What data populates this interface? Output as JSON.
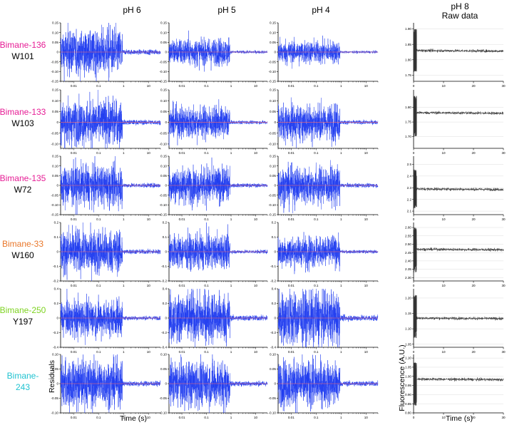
{
  "columns": [
    {
      "title_lines": [
        "pH 6"
      ],
      "kind": "residual"
    },
    {
      "title_lines": [
        "pH 5"
      ],
      "kind": "residual"
    },
    {
      "title_lines": [
        "pH 4"
      ],
      "kind": "residual"
    },
    {
      "title_lines": [
        "pH 8",
        "Raw data"
      ],
      "kind": "raw"
    }
  ],
  "rows": [
    {
      "label_lines": [
        "Bimane-136",
        "W101"
      ],
      "label_colors": [
        "#e61d95",
        "#000000"
      ]
    },
    {
      "label_lines": [
        "Bimane-133",
        "W103"
      ],
      "label_colors": [
        "#e61d95",
        "#000000"
      ]
    },
    {
      "label_lines": [
        "Bimane-135",
        "W72"
      ],
      "label_colors": [
        "#e61d95",
        "#000000"
      ]
    },
    {
      "label_lines": [
        "Bimane-33",
        "W160"
      ],
      "label_colors": [
        "#e9772a",
        "#000000"
      ]
    },
    {
      "label_lines": [
        "Bimane-250",
        "Y197"
      ],
      "label_colors": [
        "#7ed321",
        "#000000"
      ]
    },
    {
      "label_lines": [
        "Bimane-",
        "243"
      ],
      "label_colors": [
        "#21c3d1",
        "#21c3d1"
      ]
    }
  ],
  "axis_labels": {
    "residual_y": "Residuals",
    "residual_x": "Time (s)",
    "raw_y": "Fluorescence (A.U.)",
    "raw_x": "Time (s)"
  },
  "colors": {
    "residual_trace": "#1f3cf0",
    "zero_line": "#ff6b6b",
    "raw_trace": "#333333",
    "grid": "#dddddd"
  },
  "chart_data": {
    "type": "line",
    "residual_x_scale": "log",
    "residual_xlim": [
      0.003,
      30
    ],
    "residual_xticks": [
      "0.01",
      "0.1",
      "1",
      "10"
    ],
    "raw_xlim": [
      0,
      30
    ],
    "raw_xticks": [
      "0",
      "10",
      "20",
      "30"
    ],
    "residual_yticks": [
      [
        "0.15",
        "0.10",
        "0.05",
        "0",
        "-0.05",
        "-0.10",
        "-0.15"
      ],
      [
        "0.15",
        "0.10",
        "0.05",
        "0",
        "-0.05",
        "-0.10"
      ],
      [
        "0.15",
        "0.10",
        "0.05",
        "0",
        "-0.05",
        "-0.10",
        "-0.15"
      ],
      [
        "0.2",
        "0.1",
        "0",
        "-0.1",
        "-0.2"
      ],
      [
        "0.4",
        "0.2",
        "0",
        "-0.2",
        "-0.4"
      ],
      [
        "0.10",
        "0.05",
        "0",
        "-0.05",
        "-0.10",
        "-0.15"
      ]
    ],
    "residual_ylims": [
      [
        -0.15,
        0.15
      ],
      [
        -0.12,
        0.15
      ],
      [
        -0.15,
        0.15
      ],
      [
        -0.2,
        0.2
      ],
      [
        -0.4,
        0.4
      ],
      [
        -0.1,
        0.1
      ]
    ],
    "residual_amplitude": [
      [
        0.1,
        0.06,
        0.05
      ],
      [
        0.09,
        0.065,
        0.075
      ],
      [
        0.09,
        0.08,
        0.085
      ],
      [
        0.13,
        0.1,
        0.09
      ],
      [
        0.22,
        0.3,
        0.32
      ],
      [
        0.07,
        0.07,
        0.07
      ]
    ],
    "raw_yticks": [
      [
        "1.90",
        "1.85",
        "1.80",
        "1.75"
      ],
      [
        "1.80",
        "1.75",
        "1.70"
      ],
      [
        "2.5",
        "2.4",
        "2.3",
        "2.2",
        "2.1"
      ],
      [
        "2.60",
        "2.55",
        "2.50",
        "2.45",
        "2.40",
        "2.35",
        "2.30"
      ],
      [
        "1.20",
        "1.15",
        "1.10",
        "1.05"
      ],
      [
        "1.10",
        "1.05",
        "1.00",
        "0.95",
        "0.90",
        "0.85",
        "0.80"
      ]
    ],
    "raw_ylims": [
      [
        1.73,
        1.92
      ],
      [
        1.66,
        1.86
      ],
      [
        2.07,
        2.57
      ],
      [
        2.28,
        2.63
      ],
      [
        1.04,
        1.23
      ],
      [
        0.8,
        1.12
      ]
    ],
    "raw_plateau": [
      1.83,
      1.782,
      2.29,
      2.47,
      1.135,
      0.985
    ],
    "raw_spike_range": [
      [
        1.76,
        1.9
      ],
      [
        1.7,
        1.84
      ],
      [
        2.12,
        2.46
      ],
      [
        2.33,
        2.6
      ],
      [
        1.07,
        1.21
      ],
      [
        0.84,
        1.08
      ]
    ]
  }
}
